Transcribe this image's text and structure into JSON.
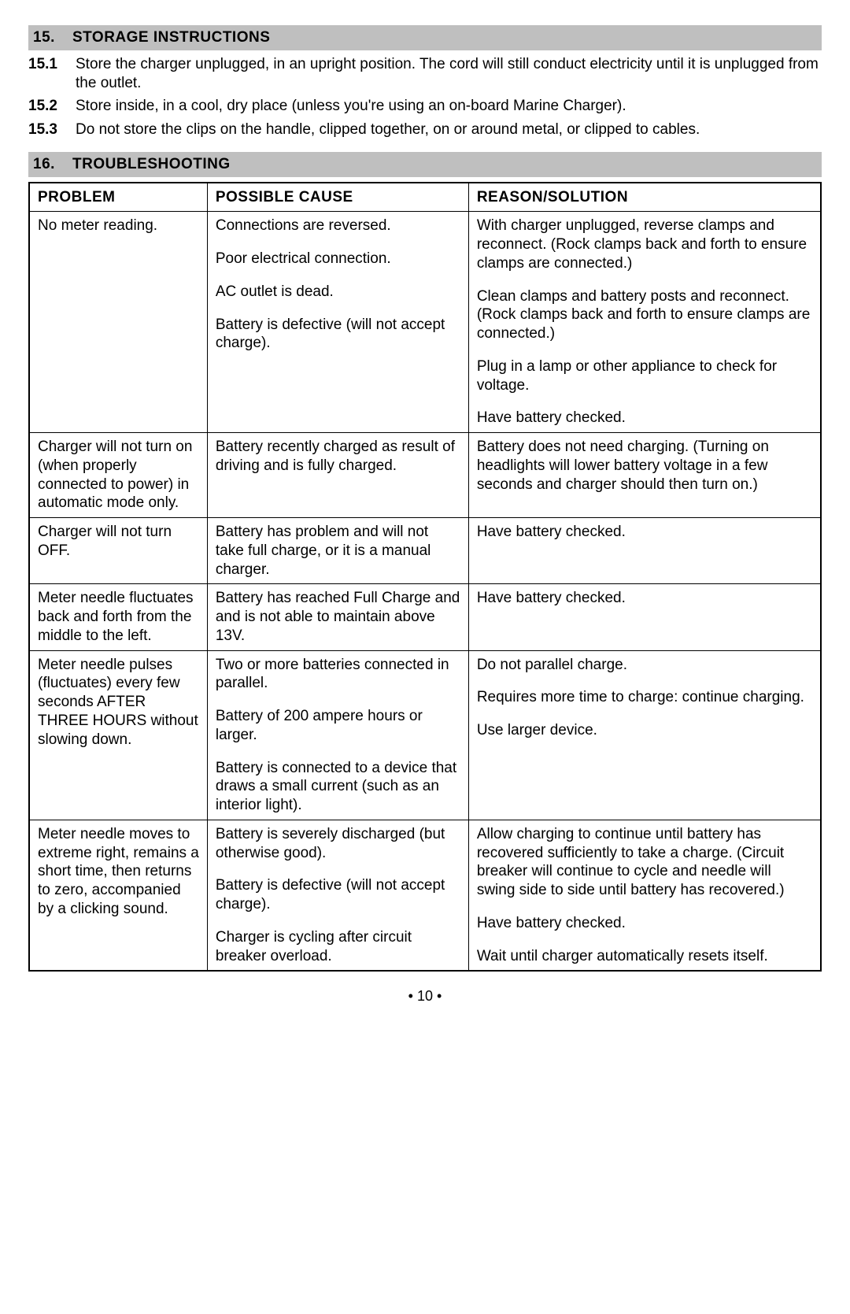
{
  "storage": {
    "header_num": "15.",
    "header_title": "STORAGE INSTRUCTIONS",
    "items": [
      {
        "num": "15.1",
        "text": "Store the charger unplugged, in an upright position. The cord will still conduct electricity until it is unplugged from the outlet."
      },
      {
        "num": "15.2",
        "text": "Store inside, in a cool, dry place (unless you're using an on-board Marine Charger)."
      },
      {
        "num": "15.3",
        "text": "Do not store the clips on the handle, clipped together, on or around metal, or clipped to cables."
      }
    ]
  },
  "troubleshooting": {
    "header_num": "16.",
    "header_title": "TROUBLESHOOTING",
    "columns": [
      "PROBLEM",
      "POSSIBLE CAUSE",
      "REASON/SOLUTION"
    ],
    "rows": [
      {
        "problem": "No meter reading.",
        "causes": [
          "Connections are reversed.",
          "Poor electrical connection.",
          "AC outlet is dead.",
          "Battery is defective (will not accept charge)."
        ],
        "solutions": [
          "With charger unplugged, reverse clamps and reconnect. (Rock clamps back and forth to ensure clamps are connected.)",
          "Clean clamps and battery posts and reconnect. (Rock clamps back and forth to ensure clamps are connected.)",
          "Plug in a lamp or other appliance to check for voltage.",
          "Have battery checked."
        ]
      },
      {
        "problem": "Charger will not turn on (when properly connected to power) in automatic mode only.",
        "causes": [
          "Battery recently charged as result of driving and is fully charged."
        ],
        "solutions": [
          "Battery does not need charging. (Turning on headlights will lower battery voltage in a few seconds and charger should then turn on.)"
        ]
      },
      {
        "problem": "Charger will not turn OFF.",
        "causes": [
          "Battery has problem and will not take full charge, or it is a manual charger."
        ],
        "solutions": [
          "Have battery checked."
        ]
      },
      {
        "problem": "Meter needle fluctuates back and forth from the middle to the left.",
        "causes": [
          "Battery has reached Full Charge and and is not able to maintain above 13V."
        ],
        "solutions": [
          "Have battery checked."
        ]
      },
      {
        "problem": "Meter needle pulses (fluctuates) every few seconds AFTER THREE HOURS without slowing down.",
        "causes": [
          "Two or more batteries connected in parallel.",
          "Battery of 200 ampere hours or larger.",
          "Battery is connected to a device that draws a small current (such as an interior light)."
        ],
        "solutions": [
          "Do not parallel charge.",
          "Requires more time to charge: continue charging.",
          "Use larger device."
        ]
      },
      {
        "problem": "Meter needle moves to extreme right, remains a short time, then returns to zero, accompanied by a clicking sound.",
        "causes": [
          "Battery is severely discharged (but otherwise good).",
          "Battery is defective (will not accept charge).",
          "Charger is cycling after circuit breaker overload."
        ],
        "solutions": [
          "Allow charging to continue until battery has recovered sufficiently to take a charge. (Circuit breaker will continue to cycle and needle will swing side to side until battery has recovered.)",
          "Have battery checked.",
          "Wait until charger automatically resets itself."
        ]
      }
    ]
  },
  "page_number": "• 10 •"
}
